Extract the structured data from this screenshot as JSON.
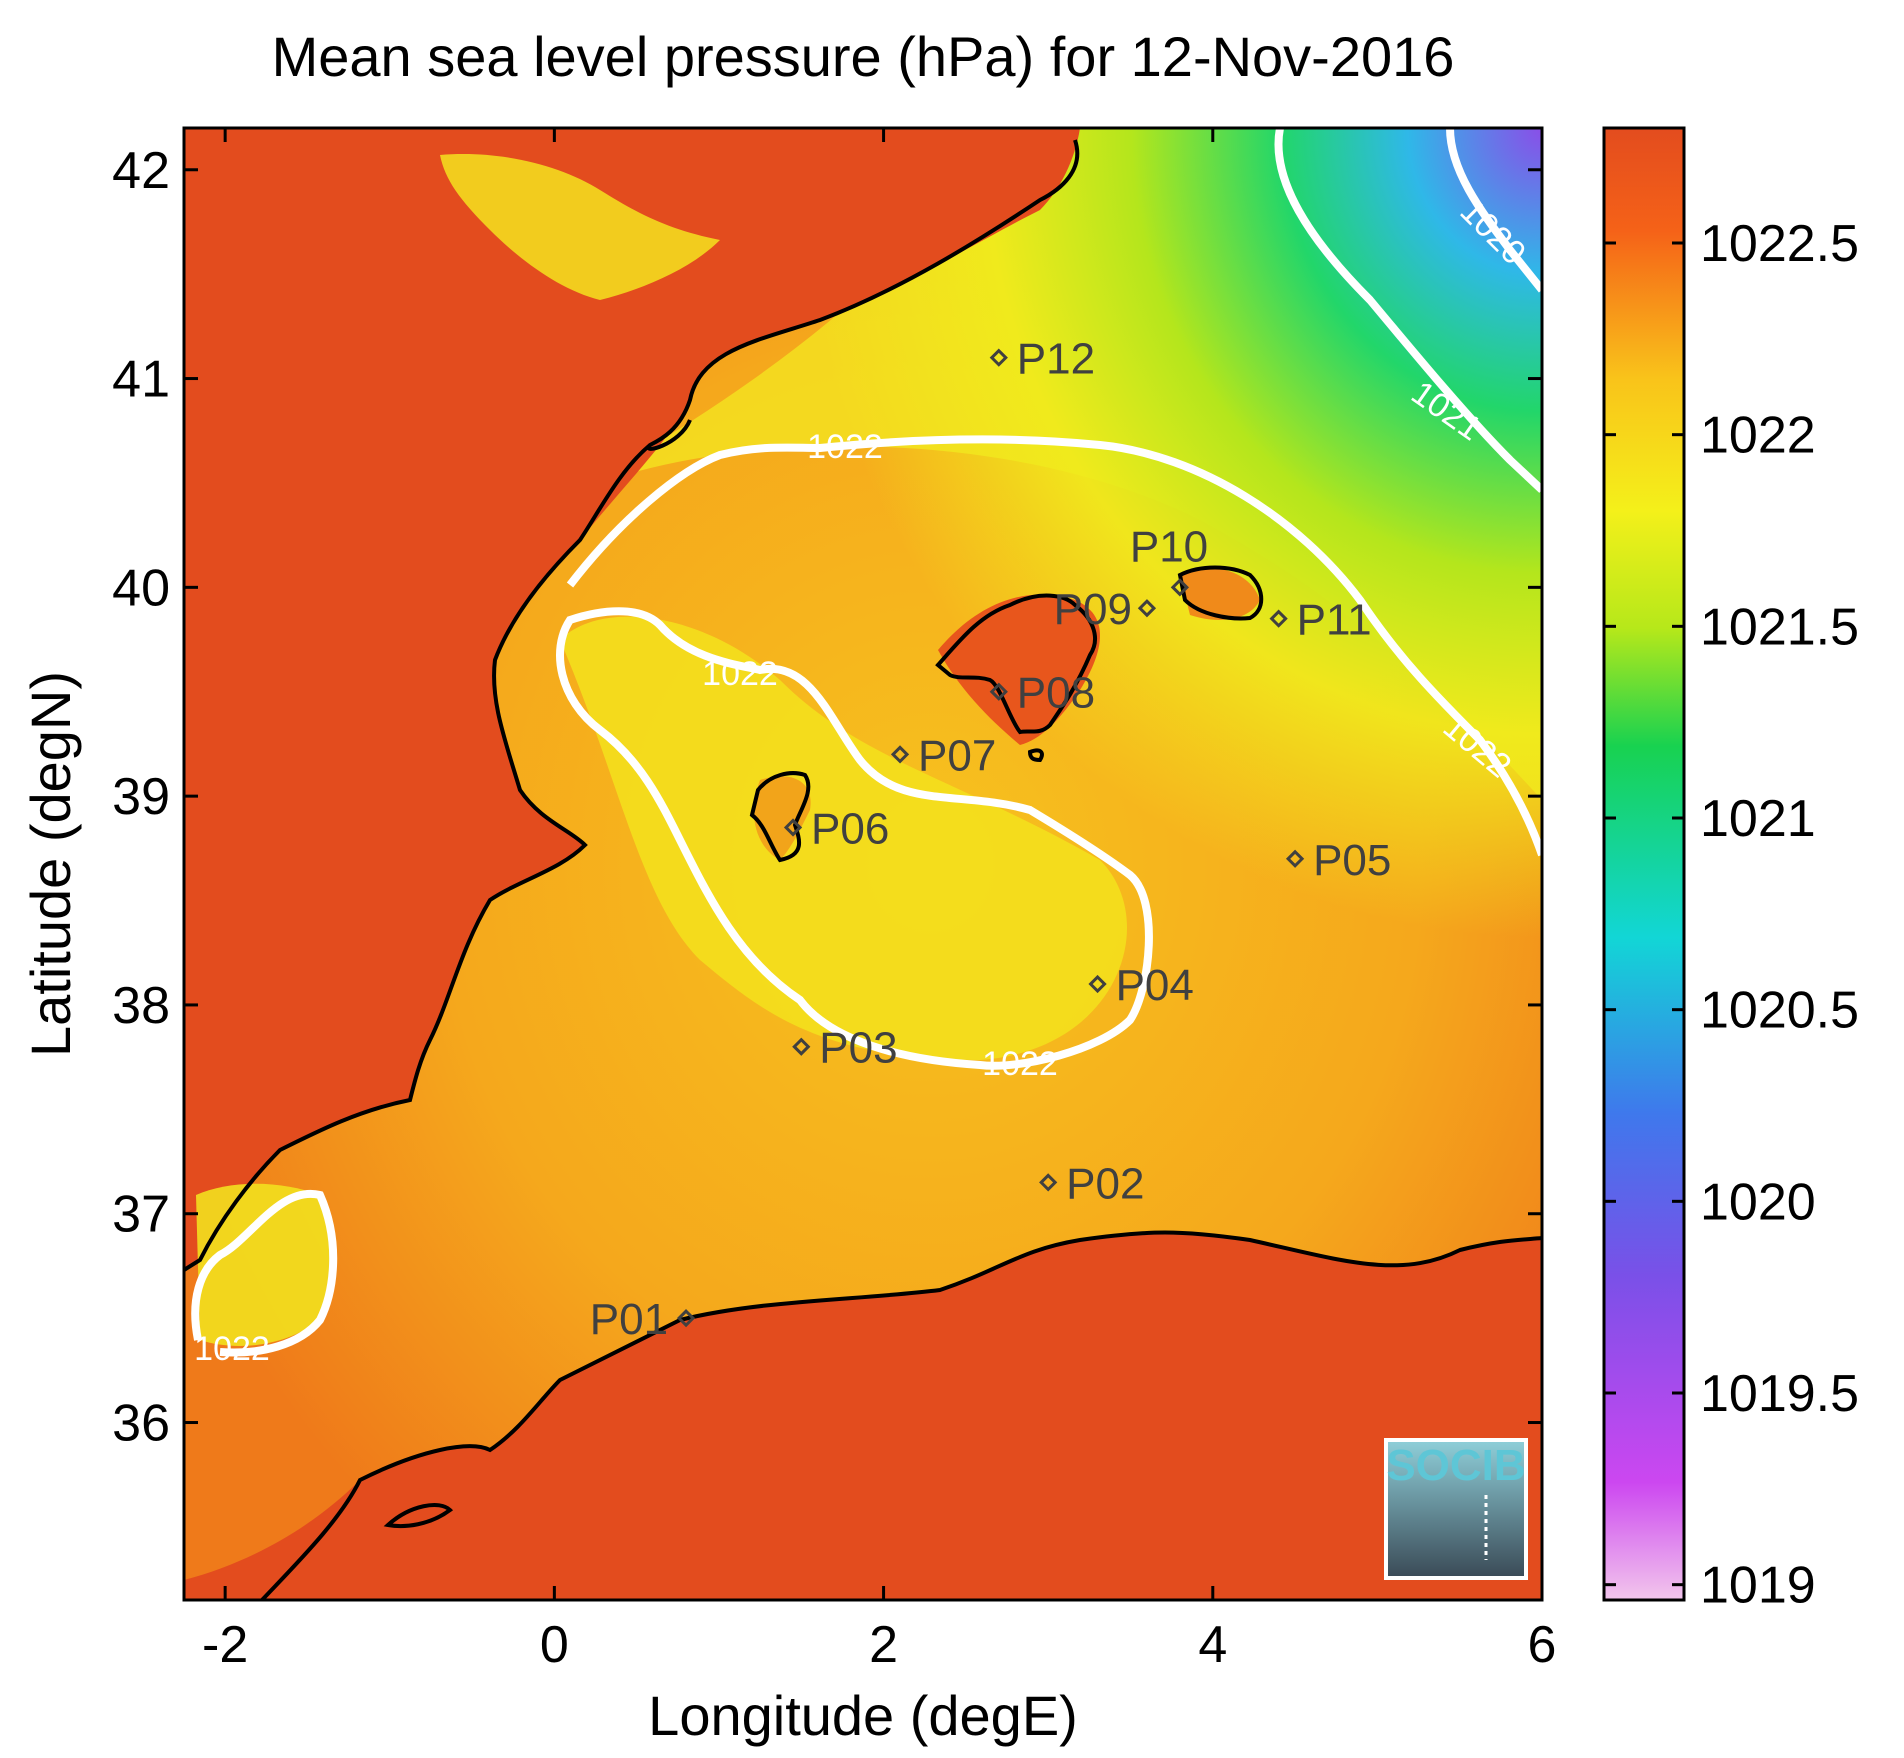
{
  "title": "Mean sea level pressure (hPa) for 12-Nov-2016",
  "xlabel": "Longitude (degE)",
  "ylabel": "Latitude (degN)",
  "x_ticks": [
    "-2",
    "0",
    "2",
    "4",
    "6"
  ],
  "y_ticks": [
    "36",
    "37",
    "38",
    "39",
    "40",
    "41",
    "42"
  ],
  "colorbar_ticks": [
    "1019",
    "1019.5",
    "1020",
    "1020.5",
    "1021",
    "1021.5",
    "1022",
    "1022.5"
  ],
  "colorbar_colors": [
    "#f2c6ec",
    "#cc47f0",
    "#7a50e8",
    "#3f78ec",
    "#12d6d6",
    "#18d250",
    "#b6e81a",
    "#f4f01a",
    "#f9c31a",
    "#f56218",
    "#e34c1e"
  ],
  "colors": {
    "land": "#e34c1e",
    "contour": "#ffffff",
    "coastline": "#000000",
    "station": "#404040"
  },
  "contour_labels": [
    "1022",
    "1022",
    "1022",
    "1022",
    "1022",
    "1021",
    "1020"
  ],
  "stations": [
    {
      "id": "P01",
      "lon": 0.8,
      "lat": 36.5
    },
    {
      "id": "P02",
      "lon": 3.0,
      "lat": 37.15
    },
    {
      "id": "P03",
      "lon": 1.5,
      "lat": 37.8
    },
    {
      "id": "P04",
      "lon": 3.3,
      "lat": 38.1
    },
    {
      "id": "P05",
      "lon": 4.5,
      "lat": 38.7
    },
    {
      "id": "P06",
      "lon": 1.45,
      "lat": 38.85
    },
    {
      "id": "P07",
      "lon": 2.1,
      "lat": 39.2
    },
    {
      "id": "P08",
      "lon": 2.7,
      "lat": 39.5
    },
    {
      "id": "P09",
      "lon": 3.6,
      "lat": 39.9
    },
    {
      "id": "P10",
      "lon": 3.8,
      "lat": 40.0
    },
    {
      "id": "P11",
      "lon": 4.4,
      "lat": 39.85
    },
    {
      "id": "P12",
      "lon": 2.7,
      "lat": 41.1
    }
  ],
  "logo": {
    "text": "SOCIB",
    "icon": "socib-logo-icon"
  }
}
